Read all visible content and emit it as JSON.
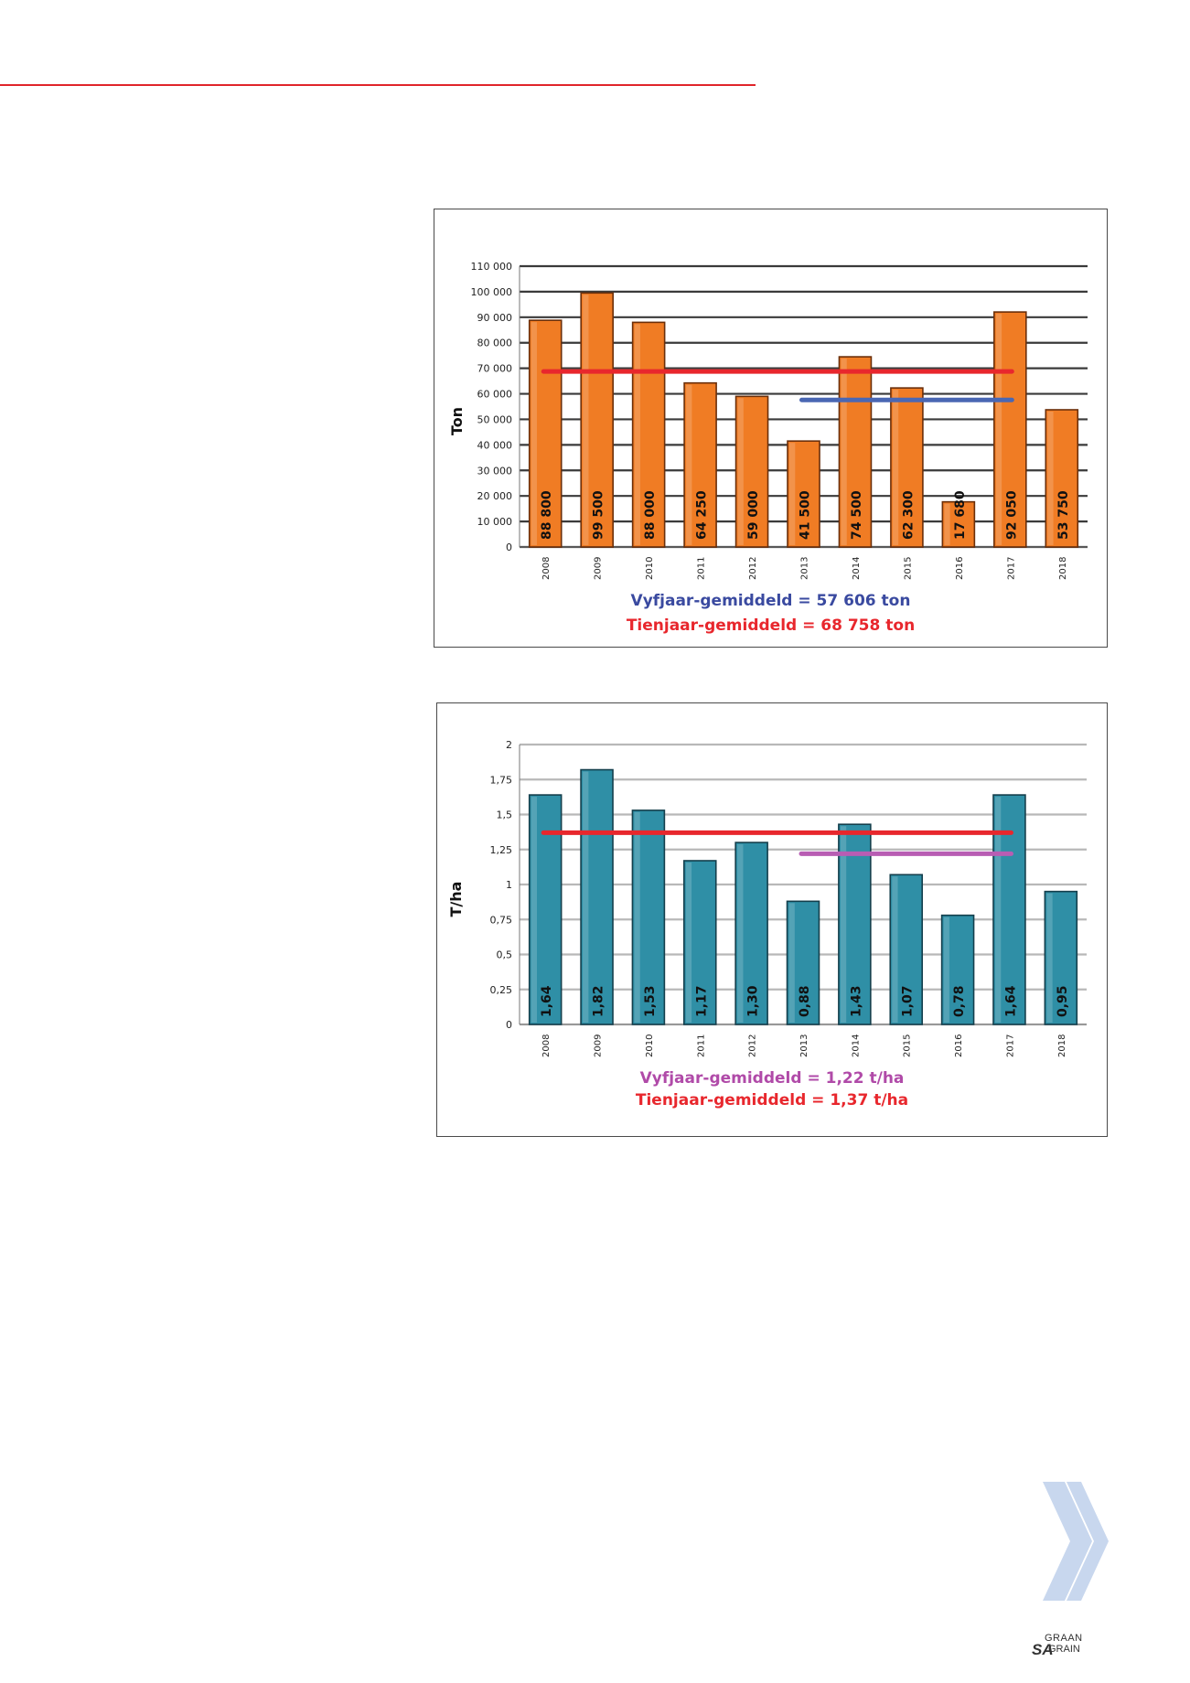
{
  "colors": {
    "rule": "#e0242a",
    "chart1_bar": "#f07c24",
    "chart1_bar_edge": "#6b2f0a",
    "chart2_bar": "#2f8fa6",
    "chart2_bar_edge": "#143f4c",
    "ten_year_line": "#e8272d",
    "five_year_line_1": "#4a67b3",
    "five_year_line_2": "#b85db3",
    "chevron": "#c8d7ee"
  },
  "icons": {
    "chevron": "double-chevron-right-icon"
  },
  "brand": {
    "line1": "GRAAN",
    "line2": "SA",
    "line3": "GRAIN"
  },
  "chart_data": [
    {
      "type": "bar",
      "categories": [
        "2008",
        "2009",
        "2010",
        "2011",
        "2012",
        "2013",
        "2014",
        "2015",
        "2016",
        "2017",
        "2018"
      ],
      "values": [
        88800,
        99500,
        88000,
        64250,
        59000,
        41500,
        74500,
        62300,
        17680,
        92050,
        53750
      ],
      "value_labels": [
        "88 800",
        "99 500",
        "88 000",
        "64 250",
        "59 000",
        "41 500",
        "74 500",
        "62 300",
        "17 680",
        "92 050",
        "53 750"
      ],
      "ylabel": "Ton",
      "xlabel": "",
      "ylim": [
        0,
        110000
      ],
      "yticks": [
        0,
        10000,
        20000,
        30000,
        40000,
        50000,
        60000,
        70000,
        80000,
        90000,
        100000,
        110000
      ],
      "ytick_labels": [
        "0",
        "10 000",
        "20 000",
        "30 000",
        "40 000",
        "50 000",
        "60 000",
        "70 000",
        "80 000",
        "90 000",
        "100 000",
        "110 000"
      ],
      "grid": true,
      "reference_lines": [
        {
          "value": 68758,
          "from": "2008",
          "to": "2017",
          "color": "#e8272d"
        },
        {
          "value": 57606,
          "from": "2013",
          "to": "2017",
          "color": "#4a67b3"
        }
      ],
      "captions": [
        {
          "text": "Vyfjaar-gemiddeld = 57 606 ton",
          "color": "#3a4aa0"
        },
        {
          "text": "Tienjaar-gemiddeld = 68 758 ton",
          "color": "#e8272d"
        }
      ]
    },
    {
      "type": "bar",
      "categories": [
        "2008",
        "2009",
        "2010",
        "2011",
        "2012",
        "2013",
        "2014",
        "2015",
        "2016",
        "2017",
        "2018"
      ],
      "values": [
        1.64,
        1.82,
        1.53,
        1.17,
        1.3,
        0.88,
        1.43,
        1.07,
        0.78,
        1.64,
        0.95
      ],
      "value_labels": [
        "1,64",
        "1,82",
        "1,53",
        "1,17",
        "1,30",
        "0,88",
        "1,43",
        "1,07",
        "0,78",
        "1,64",
        "0,95"
      ],
      "ylabel": "T/ha",
      "xlabel": "",
      "ylim": [
        0,
        2
      ],
      "yticks": [
        0,
        0.25,
        0.5,
        0.75,
        1,
        1.25,
        1.5,
        1.75,
        2
      ],
      "ytick_labels": [
        "0",
        "0,25",
        "0,5",
        "0,75",
        "1",
        "1,25",
        "1,5",
        "1,75",
        "2"
      ],
      "grid": true,
      "reference_lines": [
        {
          "value": 1.37,
          "from": "2008",
          "to": "2017",
          "color": "#e8272d"
        },
        {
          "value": 1.22,
          "from": "2013",
          "to": "2017",
          "color": "#b85db3"
        }
      ],
      "captions": [
        {
          "text": "Vyfjaar-gemiddeld = 1,22 t/ha",
          "color": "#b04aa8"
        },
        {
          "text": "Tienjaar-gemiddeld = 1,37 t/ha",
          "color": "#e8272d"
        }
      ]
    }
  ]
}
